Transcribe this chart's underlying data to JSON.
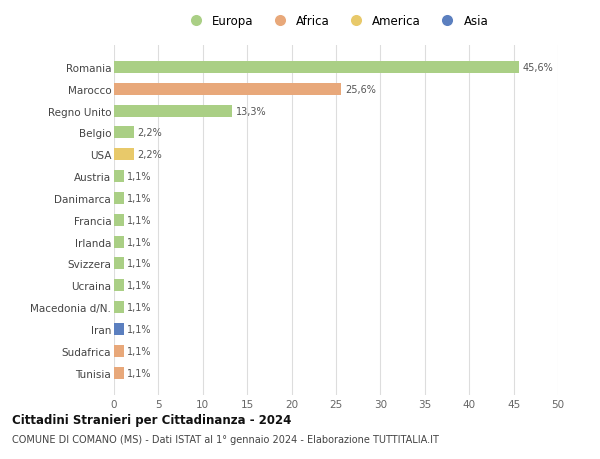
{
  "categories": [
    "Romania",
    "Marocco",
    "Regno Unito",
    "Belgio",
    "USA",
    "Austria",
    "Danimarca",
    "Francia",
    "Irlanda",
    "Svizzera",
    "Ucraina",
    "Macedonia d/N.",
    "Iran",
    "Sudafrica",
    "Tunisia"
  ],
  "values": [
    45.6,
    25.6,
    13.3,
    2.2,
    2.2,
    1.1,
    1.1,
    1.1,
    1.1,
    1.1,
    1.1,
    1.1,
    1.1,
    1.1,
    1.1
  ],
  "labels": [
    "45,6%",
    "25,6%",
    "13,3%",
    "2,2%",
    "2,2%",
    "1,1%",
    "1,1%",
    "1,1%",
    "1,1%",
    "1,1%",
    "1,1%",
    "1,1%",
    "1,1%",
    "1,1%",
    "1,1%"
  ],
  "colors": [
    "#aacf85",
    "#e8a87a",
    "#aacf85",
    "#aacf85",
    "#e8c96a",
    "#aacf85",
    "#aacf85",
    "#aacf85",
    "#aacf85",
    "#aacf85",
    "#aacf85",
    "#aacf85",
    "#5b7fbf",
    "#e8a87a",
    "#e8a87a"
  ],
  "legend_labels": [
    "Europa",
    "Africa",
    "America",
    "Asia"
  ],
  "legend_colors": [
    "#aacf85",
    "#e8a87a",
    "#e8c96a",
    "#5b7fbf"
  ],
  "xlim": [
    0,
    50
  ],
  "xticks": [
    0,
    5,
    10,
    15,
    20,
    25,
    30,
    35,
    40,
    45,
    50
  ],
  "title": "Cittadini Stranieri per Cittadinanza - 2024",
  "subtitle": "COMUNE DI COMANO (MS) - Dati ISTAT al 1° gennaio 2024 - Elaborazione TUTTITALIA.IT",
  "background_color": "#ffffff",
  "grid_color": "#dddddd",
  "bar_height": 0.55
}
